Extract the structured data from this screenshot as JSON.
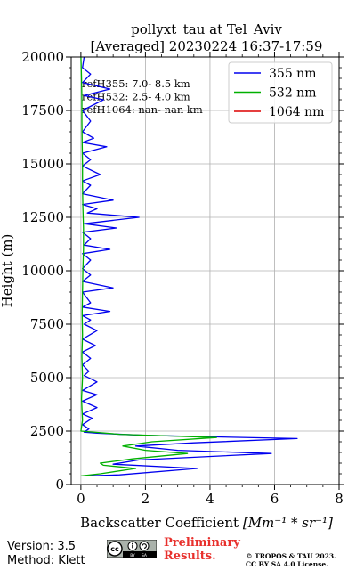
{
  "chart_data": {
    "type": "line",
    "title_line1": "pollyxt_tau at Tel_Aviv",
    "title_line2": "[Averaged] 20230224 16:37-17:59",
    "xlabel_prefix": "Backscatter Coefficient ",
    "xlabel_math": "[Mm⁻¹ * sr⁻¹]",
    "ylabel": "Height (m)",
    "xlim": [
      -0.3,
      8
    ],
    "ylim": [
      0,
      20000
    ],
    "xticks": [
      0,
      2,
      4,
      6,
      8
    ],
    "yticks": [
      0,
      2500,
      5000,
      7500,
      10000,
      12500,
      15000,
      17500,
      20000
    ],
    "grid": true,
    "legend_position": "top-right",
    "ref_annotations": [
      "refH355:  7.0- 8.5 km",
      "refH532:  2.5- 4.0 km",
      "refH1064:  nan- nan km"
    ],
    "series": [
      {
        "name": "355 nm",
        "color": "#0000ee",
        "points": [
          [
            0.1,
            400
          ],
          [
            1.2,
            450
          ],
          [
            3.6,
            750
          ],
          [
            1.0,
            950
          ],
          [
            1.8,
            1150
          ],
          [
            5.9,
            1450
          ],
          [
            3.0,
            1600
          ],
          [
            1.7,
            1800
          ],
          [
            3.5,
            1950
          ],
          [
            6.7,
            2150
          ],
          [
            2.0,
            2300
          ],
          [
            0.5,
            2400
          ],
          [
            0.1,
            2450
          ],
          [
            0.25,
            2600
          ],
          [
            0.05,
            2800
          ],
          [
            0.35,
            3100
          ],
          [
            0.05,
            3300
          ],
          [
            0.5,
            3600
          ],
          [
            0.05,
            3900
          ],
          [
            0.5,
            4200
          ],
          [
            0.05,
            4400
          ],
          [
            0.5,
            4800
          ],
          [
            0.1,
            5100
          ],
          [
            0.25,
            5300
          ],
          [
            0.05,
            5600
          ],
          [
            0.3,
            5900
          ],
          [
            0.05,
            6200
          ],
          [
            0.45,
            6500
          ],
          [
            0.05,
            6800
          ],
          [
            0.5,
            7200
          ],
          [
            0.1,
            7500
          ],
          [
            0.3,
            7700
          ],
          [
            0.05,
            7900
          ],
          [
            0.9,
            8100
          ],
          [
            0.05,
            8300
          ],
          [
            0.3,
            8500
          ],
          [
            0.05,
            9000
          ],
          [
            1.0,
            9200
          ],
          [
            0.05,
            9500
          ],
          [
            0.3,
            9800
          ],
          [
            0.05,
            10100
          ],
          [
            0.3,
            10500
          ],
          [
            0.05,
            10800
          ],
          [
            0.9,
            11000
          ],
          [
            0.1,
            11200
          ],
          [
            0.3,
            11500
          ],
          [
            0.05,
            11800
          ],
          [
            1.1,
            12000
          ],
          [
            0.1,
            12200
          ],
          [
            1.8,
            12500
          ],
          [
            0.2,
            12700
          ],
          [
            0.5,
            12900
          ],
          [
            0.05,
            13100
          ],
          [
            1.0,
            13300
          ],
          [
            0.05,
            13600
          ],
          [
            0.3,
            14000
          ],
          [
            0.05,
            14200
          ],
          [
            0.6,
            14500
          ],
          [
            0.05,
            14900
          ],
          [
            0.3,
            15200
          ],
          [
            0.05,
            15500
          ],
          [
            0.8,
            15800
          ],
          [
            0.05,
            16000
          ],
          [
            0.4,
            16200
          ],
          [
            0.05,
            16500
          ],
          [
            0.3,
            17000
          ],
          [
            0.05,
            17500
          ],
          [
            0.7,
            18000
          ],
          [
            0.1,
            18200
          ],
          [
            0.9,
            18500
          ],
          [
            0.05,
            18800
          ],
          [
            0.3,
            19200
          ],
          [
            0.05,
            19500
          ],
          [
            0.1,
            20000
          ]
        ]
      },
      {
        "name": "532 nm",
        "color": "#00b000",
        "points": [
          [
            0.0,
            400
          ],
          [
            0.6,
            500
          ],
          [
            1.7,
            750
          ],
          [
            0.7,
            900
          ],
          [
            0.6,
            1000
          ],
          [
            1.6,
            1200
          ],
          [
            3.3,
            1450
          ],
          [
            2.0,
            1600
          ],
          [
            1.3,
            1800
          ],
          [
            2.2,
            2000
          ],
          [
            4.2,
            2200
          ],
          [
            1.2,
            2350
          ],
          [
            0.0,
            2500
          ],
          [
            0.05,
            3000
          ],
          [
            0.02,
            4000
          ],
          [
            0.05,
            5000
          ],
          [
            0.03,
            6000
          ],
          [
            0.05,
            7000
          ],
          [
            0.04,
            8000
          ],
          [
            0.05,
            9000
          ],
          [
            0.06,
            10000
          ],
          [
            0.08,
            11000
          ],
          [
            0.08,
            12000
          ],
          [
            0.06,
            13000
          ],
          [
            0.05,
            14000
          ],
          [
            0.05,
            15000
          ],
          [
            0.04,
            16000
          ],
          [
            0.03,
            17000
          ],
          [
            0.03,
            18000
          ],
          [
            0.02,
            19000
          ],
          [
            0.0,
            20000
          ]
        ]
      },
      {
        "name": "1064 nm",
        "color": "#dd0000",
        "points": []
      }
    ]
  },
  "footer": {
    "version": "Version: 3.5",
    "method": "Method: Klett",
    "preliminary_line1": "Preliminary",
    "preliminary_line2": "Results.",
    "copyright_line1": "© TROPOS & TAU 2023.",
    "copyright_line2": "CC BY SA 4.0 License."
  }
}
